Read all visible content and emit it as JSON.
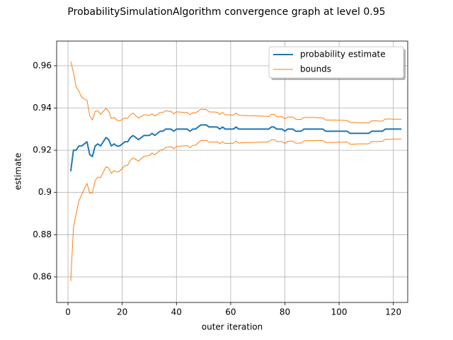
{
  "chart_data": {
    "type": "line",
    "title": "ProbabilitySimulationAlgorithm convergence graph at level 0.95",
    "x_label": "outer iteration",
    "y_label": "estimate",
    "x": [
      1,
      2,
      3,
      4,
      5,
      6,
      7,
      8,
      9,
      10,
      11,
      12,
      13,
      14,
      15,
      16,
      17,
      18,
      19,
      20,
      21,
      22,
      23,
      24,
      25,
      26,
      27,
      28,
      29,
      30,
      31,
      32,
      33,
      34,
      35,
      36,
      37,
      38,
      39,
      40,
      41,
      42,
      43,
      44,
      45,
      46,
      47,
      48,
      49,
      50,
      51,
      52,
      53,
      54,
      55,
      56,
      57,
      58,
      59,
      60,
      61,
      62,
      63,
      64,
      65,
      66,
      67,
      68,
      69,
      70,
      71,
      72,
      73,
      74,
      75,
      76,
      77,
      78,
      79,
      80,
      81,
      82,
      83,
      84,
      85,
      86,
      87,
      88,
      89,
      90,
      91,
      92,
      93,
      94,
      95,
      96,
      97,
      98,
      99,
      100,
      101,
      102,
      103,
      104,
      105,
      106,
      107,
      108,
      109,
      110,
      111,
      112,
      113,
      114,
      115,
      116,
      117,
      118,
      119,
      120,
      121,
      122,
      123
    ],
    "series": [
      {
        "name": "probability estimate",
        "color": "#1f77b4",
        "values": [
          0.91,
          0.92,
          0.92,
          0.922,
          0.922,
          0.923,
          0.924,
          0.918,
          0.917,
          0.922,
          0.923,
          0.922,
          0.924,
          0.926,
          0.925,
          0.922,
          0.923,
          0.922,
          0.922,
          0.923,
          0.924,
          0.924,
          0.926,
          0.927,
          0.926,
          0.925,
          0.926,
          0.927,
          0.927,
          0.927,
          0.928,
          0.927,
          0.928,
          0.929,
          0.929,
          0.93,
          0.93,
          0.93,
          0.929,
          0.93,
          0.93,
          0.93,
          0.93,
          0.93,
          0.929,
          0.93,
          0.93,
          0.931,
          0.932,
          0.932,
          0.932,
          0.931,
          0.931,
          0.931,
          0.931,
          0.93,
          0.931,
          0.93,
          0.93,
          0.93,
          0.93,
          0.931,
          0.93,
          0.93,
          0.93,
          0.93,
          0.93,
          0.93,
          0.93,
          0.93,
          0.93,
          0.93,
          0.93,
          0.93,
          0.931,
          0.931,
          0.93,
          0.93,
          0.93,
          0.929,
          0.93,
          0.93,
          0.93,
          0.929,
          0.929,
          0.929,
          0.93,
          0.93,
          0.93,
          0.93,
          0.93,
          0.93,
          0.93,
          0.93,
          0.929,
          0.929,
          0.929,
          0.929,
          0.929,
          0.929,
          0.929,
          0.929,
          0.929,
          0.928,
          0.928,
          0.928,
          0.928,
          0.928,
          0.928,
          0.928,
          0.928,
          0.929,
          0.929,
          0.929,
          0.929,
          0.929,
          0.93,
          0.93,
          0.93,
          0.93,
          0.93,
          0.93,
          0.93
        ]
      },
      {
        "name": "bounds",
        "color": "#ff7f0e",
        "values": [
          0.962,
          0.9568,
          0.95,
          0.948,
          0.9453,
          0.9442,
          0.9437,
          0.9364,
          0.9343,
          0.9384,
          0.9387,
          0.937,
          0.9384,
          0.9399,
          0.9384,
          0.935,
          0.9356,
          0.9343,
          0.9339,
          0.9346,
          0.9353,
          0.9351,
          0.9368,
          0.9376,
          0.9364,
          0.9352,
          0.936,
          0.9368,
          0.9367,
          0.9365,
          0.9373,
          0.9362,
          0.9371,
          0.9379,
          0.9378,
          0.9387,
          0.9385,
          0.9384,
          0.9373,
          0.9382,
          0.9381,
          0.938,
          0.9379,
          0.9378,
          0.9368,
          0.9377,
          0.9376,
          0.9385,
          0.9394,
          0.9394,
          0.9393,
          0.9382,
          0.9381,
          0.9381,
          0.938,
          0.9369,
          0.9379,
          0.9368,
          0.9368,
          0.9367,
          0.9367,
          0.9376,
          0.9366,
          0.9365,
          0.9364,
          0.9364,
          0.9364,
          0.9363,
          0.9363,
          0.9362,
          0.9362,
          0.9361,
          0.9361,
          0.936,
          0.937,
          0.937,
          0.9359,
          0.9359,
          0.9359,
          0.9348,
          0.9358,
          0.9357,
          0.9357,
          0.9347,
          0.9346,
          0.9346,
          0.9356,
          0.9355,
          0.9355,
          0.9355,
          0.9355,
          0.9354,
          0.9354,
          0.9354,
          0.9343,
          0.9343,
          0.9343,
          0.9343,
          0.9342,
          0.9342,
          0.9342,
          0.9341,
          0.9341,
          0.9331,
          0.9331,
          0.9331,
          0.933,
          0.933,
          0.933,
          0.933,
          0.9329,
          0.9339,
          0.9339,
          0.9339,
          0.9338,
          0.9338,
          0.9348,
          0.9348,
          0.9348,
          0.9347,
          0.9347,
          0.9347,
          0.9347
        ],
        "lower": [
          0.858,
          0.8832,
          0.89,
          0.896,
          0.8987,
          0.9018,
          0.9043,
          0.8996,
          0.8997,
          0.9056,
          0.9073,
          0.907,
          0.9096,
          0.9121,
          0.9116,
          0.909,
          0.9104,
          0.9097,
          0.9101,
          0.9114,
          0.9127,
          0.9129,
          0.9152,
          0.9164,
          0.9156,
          0.9148,
          0.916,
          0.9172,
          0.9173,
          0.9175,
          0.9187,
          0.9178,
          0.9189,
          0.9201,
          0.9202,
          0.9213,
          0.9215,
          0.9216,
          0.9207,
          0.9218,
          0.9219,
          0.922,
          0.9221,
          0.9222,
          0.9212,
          0.9223,
          0.9224,
          0.9235,
          0.9246,
          0.9246,
          0.9247,
          0.9238,
          0.9239,
          0.9239,
          0.924,
          0.9231,
          0.9241,
          0.9232,
          0.9232,
          0.9233,
          0.9233,
          0.9244,
          0.9234,
          0.9235,
          0.9236,
          0.9236,
          0.9236,
          0.9237,
          0.9237,
          0.9238,
          0.9238,
          0.9239,
          0.9239,
          0.924,
          0.925,
          0.925,
          0.9241,
          0.9241,
          0.9241,
          0.9232,
          0.9242,
          0.9243,
          0.9243,
          0.9233,
          0.9234,
          0.9234,
          0.9244,
          0.9245,
          0.9245,
          0.9245,
          0.9245,
          0.9246,
          0.9246,
          0.9246,
          0.9237,
          0.9237,
          0.9237,
          0.9237,
          0.9238,
          0.9238,
          0.9238,
          0.9239,
          0.9239,
          0.9229,
          0.9229,
          0.9229,
          0.923,
          0.923,
          0.923,
          0.923,
          0.9231,
          0.9241,
          0.9241,
          0.9241,
          0.9242,
          0.9242,
          0.9252,
          0.9252,
          0.9252,
          0.9253,
          0.9253,
          0.9253,
          0.9253
        ]
      }
    ],
    "xlim": [
      -4.2,
      125.3
    ],
    "xticks": [
      0,
      20,
      40,
      60,
      80,
      100,
      120
    ],
    "ylim": [
      0.8479,
      0.9717
    ],
    "yticks": [
      0.86,
      0.88,
      0.9,
      0.92,
      0.94,
      0.96
    ],
    "grid": true,
    "legend": "upper-right"
  }
}
